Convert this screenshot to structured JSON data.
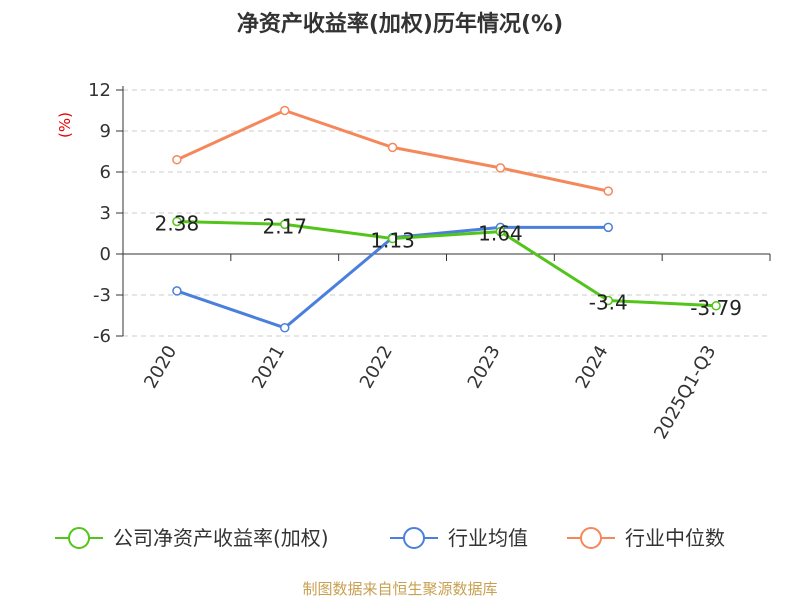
{
  "chart_data": {
    "type": "line",
    "title": "净资产收益率(加权)历年情况(%)",
    "ylabel": "(%)",
    "xlabel": "",
    "categories": [
      "2020",
      "2021",
      "2022",
      "2023",
      "2024",
      "2025Q1-Q3"
    ],
    "ylim": [
      -6,
      12
    ],
    "yticks": [
      12,
      9,
      6,
      3,
      0,
      -3,
      -6
    ],
    "series": [
      {
        "name": "公司净资产收益率(加权)",
        "color": "#52c41a",
        "values": [
          2.38,
          2.17,
          1.13,
          1.64,
          -3.4,
          -3.79
        ],
        "labels": [
          "2.38",
          "2.17",
          "1.13",
          "1.64",
          "-3.4",
          "-3.79"
        ]
      },
      {
        "name": "行业均值",
        "color": "#4a7fdc",
        "values": [
          -2.7,
          -5.4,
          1.2,
          1.95,
          1.95,
          null
        ]
      },
      {
        "name": "行业中位数",
        "color": "#f5885a",
        "values": [
          6.9,
          10.5,
          7.8,
          6.3,
          4.6,
          null
        ]
      }
    ]
  },
  "source": "制图数据来自恒生聚源数据库"
}
